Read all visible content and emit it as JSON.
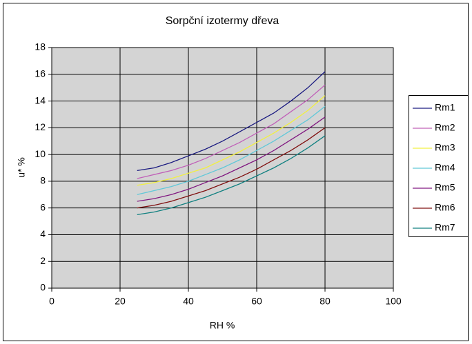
{
  "chart_data": {
    "type": "line",
    "title": "Sorpční izotermy dřeva",
    "xlabel": "RH %",
    "ylabel": "u* %",
    "x": [
      25,
      30,
      35,
      40,
      45,
      50,
      55,
      60,
      65,
      70,
      75,
      80
    ],
    "series": [
      {
        "name": "Rm1",
        "color": "#1a1a80",
        "values": [
          8.8,
          9.0,
          9.4,
          9.9,
          10.4,
          11.0,
          11.7,
          12.4,
          13.1,
          14.0,
          15.0,
          16.2
        ]
      },
      {
        "name": "Rm2",
        "color": "#c060b8",
        "values": [
          8.2,
          8.5,
          8.8,
          9.2,
          9.7,
          10.3,
          10.9,
          11.6,
          12.3,
          13.2,
          14.1,
          15.2
        ]
      },
      {
        "name": "Rm3",
        "color": "#f2f040",
        "values": [
          7.7,
          7.9,
          8.2,
          8.6,
          9.0,
          9.6,
          10.2,
          10.9,
          11.6,
          12.4,
          13.3,
          14.4
        ]
      },
      {
        "name": "Rm4",
        "color": "#60c8d8",
        "values": [
          7.0,
          7.3,
          7.6,
          8.0,
          8.5,
          9.0,
          9.6,
          10.3,
          11.0,
          11.8,
          12.6,
          13.6
        ]
      },
      {
        "name": "Rm5",
        "color": "#801880",
        "values": [
          6.5,
          6.7,
          7.0,
          7.4,
          7.9,
          8.4,
          9.0,
          9.6,
          10.3,
          11.1,
          11.9,
          12.8
        ]
      },
      {
        "name": "Rm6",
        "color": "#801010",
        "values": [
          6.0,
          6.2,
          6.5,
          6.9,
          7.3,
          7.8,
          8.3,
          8.9,
          9.6,
          10.3,
          11.1,
          12.0
        ]
      },
      {
        "name": "Rm7",
        "color": "#108080",
        "values": [
          5.5,
          5.7,
          6.0,
          6.4,
          6.8,
          7.3,
          7.8,
          8.4,
          9.0,
          9.7,
          10.5,
          11.4
        ]
      }
    ],
    "xlim": [
      0,
      100
    ],
    "xticks": [
      0,
      20,
      40,
      60,
      80,
      100
    ],
    "ylim": [
      0,
      18
    ],
    "yticks": [
      0,
      2,
      4,
      6,
      8,
      10,
      12,
      14,
      16,
      18
    ],
    "grid": true,
    "legend": "right"
  }
}
